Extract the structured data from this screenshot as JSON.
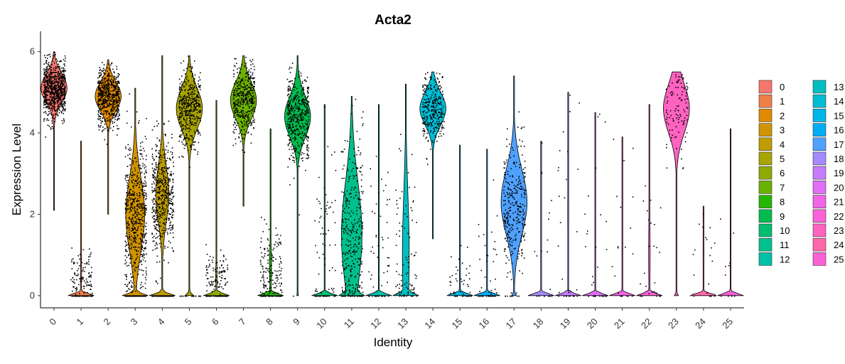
{
  "chart_data": {
    "type": "violin",
    "title": "Acta2",
    "xlabel": "Identity",
    "ylabel": "Expression Level",
    "ylim": [
      -0.3,
      6.5
    ],
    "yticks": [
      0,
      2,
      4,
      6
    ],
    "categories": [
      "0",
      "1",
      "2",
      "3",
      "4",
      "5",
      "6",
      "7",
      "8",
      "9",
      "10",
      "11",
      "12",
      "13",
      "14",
      "15",
      "16",
      "17",
      "18",
      "19",
      "20",
      "21",
      "22",
      "23",
      "24",
      "25"
    ],
    "colors": [
      "#F8766D",
      "#EE7F47",
      "#E18A00",
      "#D09400",
      "#BE9C00",
      "#A8A400",
      "#8EAB00",
      "#6BB100",
      "#24B700",
      "#00BB4E",
      "#00BE70",
      "#00C08D",
      "#00C1A8",
      "#00BFC0",
      "#00BCD5",
      "#00B6E8",
      "#00ADF6",
      "#4EA1FF",
      "#A58AFF",
      "#C77CFF",
      "#E16EF7",
      "#F265E7",
      "#FC61D5",
      "#FF63C0",
      "#FF69AA",
      "#FB61D7"
    ],
    "violins": [
      {
        "id": "0",
        "min": 2.1,
        "max": 6.0,
        "center": 5.1,
        "spread": 0.35,
        "zero_frac": 0.0,
        "points": 800
      },
      {
        "id": "1",
        "min": 0,
        "max": 3.8,
        "center": 0.5,
        "spread": 0.3,
        "zero_frac": 0.9,
        "points": 160
      },
      {
        "id": "2",
        "min": 2.0,
        "max": 5.8,
        "center": 4.9,
        "spread": 0.35,
        "zero_frac": 0.0,
        "points": 600
      },
      {
        "id": "3",
        "min": 0,
        "max": 5.1,
        "center": 2.0,
        "spread": 0.9,
        "zero_frac": 0.3,
        "points": 650
      },
      {
        "id": "4",
        "min": 0,
        "max": 5.9,
        "center": 2.5,
        "spread": 0.7,
        "zero_frac": 0.4,
        "points": 600
      },
      {
        "id": "5",
        "min": 0,
        "max": 5.9,
        "center": 4.6,
        "spread": 0.5,
        "zero_frac": 0.1,
        "points": 450
      },
      {
        "id": "6",
        "min": 0,
        "max": 4.8,
        "center": 0.5,
        "spread": 0.3,
        "zero_frac": 0.85,
        "points": 150
      },
      {
        "id": "7",
        "min": 2.2,
        "max": 5.9,
        "center": 4.8,
        "spread": 0.45,
        "zero_frac": 0.0,
        "points": 420
      },
      {
        "id": "8",
        "min": 0,
        "max": 4.1,
        "center": 0.7,
        "spread": 0.5,
        "zero_frac": 0.8,
        "points": 200
      },
      {
        "id": "9",
        "min": 0,
        "max": 5.9,
        "center": 4.4,
        "spread": 0.5,
        "zero_frac": 0.02,
        "points": 450
      },
      {
        "id": "10",
        "min": 0,
        "max": 4.7,
        "center": 1.5,
        "spread": 1.2,
        "zero_frac": 0.95,
        "points": 80
      },
      {
        "id": "11",
        "min": 0,
        "max": 4.9,
        "center": 1.5,
        "spread": 1.3,
        "zero_frac": 0.2,
        "points": 350
      },
      {
        "id": "12",
        "min": 0,
        "max": 4.7,
        "center": 1.5,
        "spread": 1.2,
        "zero_frac": 0.95,
        "points": 60
      },
      {
        "id": "13",
        "min": 0,
        "max": 5.2,
        "center": 1.0,
        "spread": 1.5,
        "zero_frac": 0.5,
        "points": 90
      },
      {
        "id": "14",
        "min": 1.4,
        "max": 5.5,
        "center": 4.6,
        "spread": 0.4,
        "zero_frac": 0.0,
        "points": 300
      },
      {
        "id": "15",
        "min": 0,
        "max": 3.7,
        "center": 0.5,
        "spread": 0.4,
        "zero_frac": 0.9,
        "points": 50
      },
      {
        "id": "16",
        "min": 0,
        "max": 3.6,
        "center": 0.8,
        "spread": 0.8,
        "zero_frac": 0.95,
        "points": 50
      },
      {
        "id": "17",
        "min": 0,
        "max": 5.4,
        "center": 2.3,
        "spread": 0.8,
        "zero_frac": 0.05,
        "points": 330
      },
      {
        "id": "18",
        "min": 0,
        "max": 3.8,
        "center": 1.5,
        "spread": 1.0,
        "zero_frac": 0.98,
        "points": 20
      },
      {
        "id": "19",
        "min": 0,
        "max": 5.0,
        "center": 2.0,
        "spread": 1.5,
        "zero_frac": 0.9,
        "points": 30
      },
      {
        "id": "20",
        "min": 0,
        "max": 4.5,
        "center": 2.0,
        "spread": 1.2,
        "zero_frac": 0.97,
        "points": 30
      },
      {
        "id": "21",
        "min": 0,
        "max": 3.9,
        "center": 1.5,
        "spread": 1.0,
        "zero_frac": 0.98,
        "points": 20
      },
      {
        "id": "22",
        "min": 0,
        "max": 4.7,
        "center": 1.0,
        "spread": 1.0,
        "zero_frac": 0.85,
        "points": 30
      },
      {
        "id": "23",
        "min": 0,
        "max": 5.5,
        "center": 4.6,
        "spread": 0.6,
        "zero_frac": 0.05,
        "points": 110
      },
      {
        "id": "24",
        "min": 0,
        "max": 2.2,
        "center": 1.0,
        "spread": 0.6,
        "zero_frac": 0.9,
        "points": 20
      },
      {
        "id": "25",
        "min": 0,
        "max": 4.1,
        "center": 1.2,
        "spread": 1.0,
        "zero_frac": 0.98,
        "points": 10
      }
    ],
    "legend": {
      "position": "right",
      "columns": 2
    },
    "grid": false
  }
}
